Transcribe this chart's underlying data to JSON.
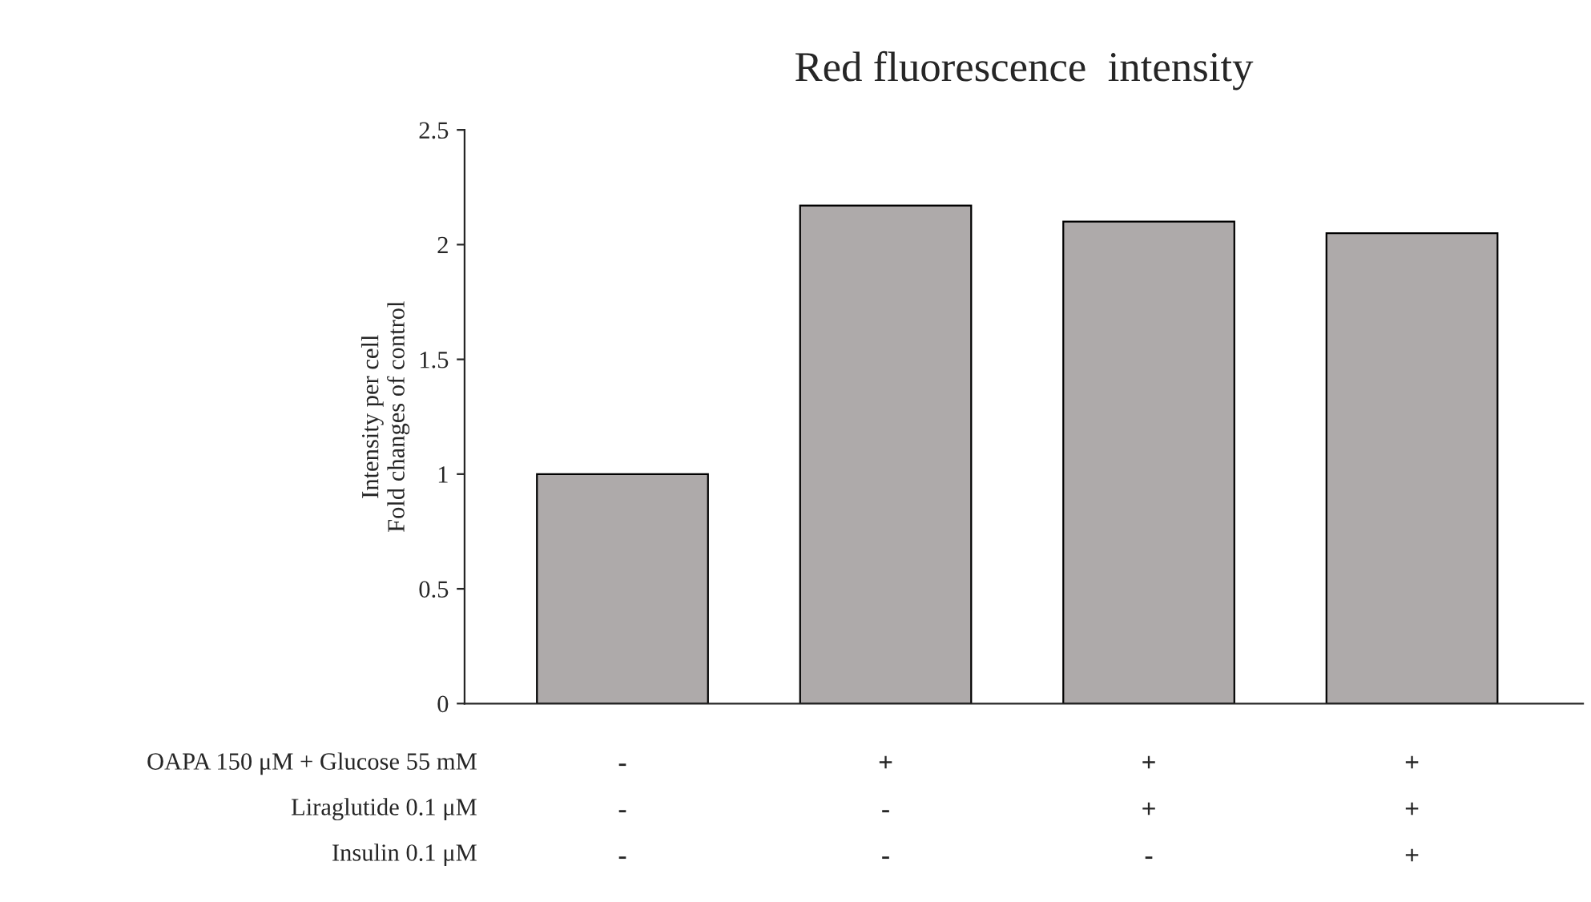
{
  "chart_data": {
    "type": "bar",
    "title": "Red fluorescence  intensity",
    "ylabel": "Intensity per cell\nFold changes of control",
    "categories": [
      "-\n-\n-",
      "+\n-\n-",
      "+\n+\n-",
      "+\n+\n+"
    ],
    "values": [
      1.0,
      2.17,
      2.1,
      2.05
    ],
    "color": "#aeaaaa",
    "ylim": [
      0,
      2.5
    ],
    "yticks": [
      0,
      0.5,
      1,
      1.5,
      2,
      2.5
    ],
    "grid": false,
    "legend": false,
    "annotations": [
      "OAPA 150 μM + Glucose 55 mM",
      "Liraglutide 0.1 μM",
      "Insulin 0.1 μM"
    ]
  }
}
